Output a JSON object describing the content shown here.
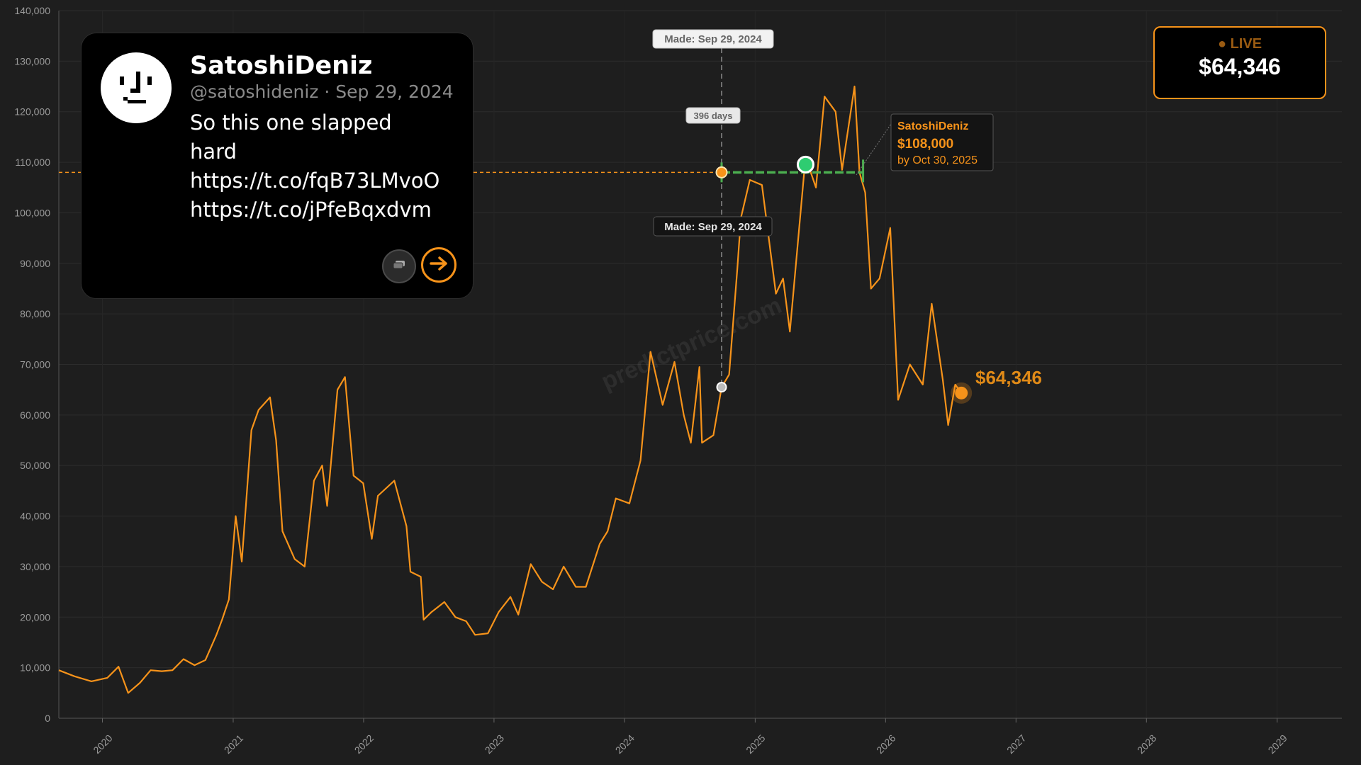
{
  "live": {
    "label": "● LIVE",
    "price": "$64,346"
  },
  "tweet": {
    "name": "SatoshiDeniz",
    "meta": "@satoshideniz · Sep 29, 2024",
    "text_lines": [
      "So this one slapped",
      "hard",
      "https://t.co/fqB73LMvoO",
      "https://t.co/jPfeBqxdvm"
    ]
  },
  "annotations": {
    "made_top": "Made: Sep 29, 2024",
    "made_mid": "Made: Sep 29, 2024",
    "days": "396 days",
    "pred_name": "SatoshiDeniz",
    "pred_price": "$108,000",
    "pred_by": "by Oct 30, 2025",
    "current_price": "$64,346",
    "watermark": "predictprice.com"
  },
  "colors": {
    "price_line": "#f7931a",
    "target_line": "#4caf50",
    "hit_marker": "#2ecc71",
    "background": "#1e1e1e"
  },
  "chart_data": {
    "type": "line",
    "title": "",
    "xlabel": "",
    "ylabel": "",
    "ylim": [
      0,
      140000
    ],
    "xlim": [
      "2019-09-01",
      "2029-07-01"
    ],
    "y_ticks": [
      "0",
      "10,000",
      "20,000",
      "30,000",
      "40,000",
      "50,000",
      "60,000",
      "70,000",
      "80,000",
      "90,000",
      "100,000",
      "110,000",
      "120,000",
      "130,000",
      "140,000"
    ],
    "x_ticks": [
      "2020",
      "2021",
      "2022",
      "2023",
      "2024",
      "2025",
      "2026",
      "2027",
      "2028",
      "2029"
    ],
    "grid": true,
    "series": [
      {
        "x": [
          "2019-09-01",
          "2019-10-15",
          "2019-12-01",
          "2020-01-15",
          "2020-02-15",
          "2020-03-13",
          "2020-04-15",
          "2020-05-15",
          "2020-06-15",
          "2020-07-15",
          "2020-08-15",
          "2020-09-15",
          "2020-10-15",
          "2020-11-15",
          "2020-12-01",
          "2020-12-20",
          "2021-01-08",
          "2021-01-25",
          "2021-02-21",
          "2021-03-13",
          "2021-04-14",
          "2021-05-01",
          "2021-05-19",
          "2021-06-22",
          "2021-07-20",
          "2021-08-15",
          "2021-09-07",
          "2021-09-21",
          "2021-10-20",
          "2021-11-10",
          "2021-12-04",
          "2021-12-31",
          "2022-01-24",
          "2022-02-10",
          "2022-03-28",
          "2022-05-01",
          "2022-05-12",
          "2022-06-10",
          "2022-06-18",
          "2022-07-10",
          "2022-08-15",
          "2022-09-15",
          "2022-10-15",
          "2022-11-09",
          "2022-12-15",
          "2023-01-14",
          "2023-02-16",
          "2023-03-10",
          "2023-04-14",
          "2023-05-15",
          "2023-06-15",
          "2023-07-15",
          "2023-08-18",
          "2023-09-15",
          "2023-10-24",
          "2023-11-15",
          "2023-12-08",
          "2024-01-15",
          "2024-02-15",
          "2024-03-14",
          "2024-04-17",
          "2024-05-20",
          "2024-06-15",
          "2024-07-05",
          "2024-07-29",
          "2024-08-05",
          "2024-09-06",
          "2024-09-29",
          "2024-10-20",
          "2024-11-12",
          "2024-11-22",
          "2024-12-17",
          "2025-01-20",
          "2025-02-28",
          "2025-03-20",
          "2025-04-08",
          "2025-05-22",
          "2025-06-20",
          "2025-07-14",
          "2025-08-14",
          "2025-09-01",
          "2025-10-06",
          "2025-10-20",
          "2025-11-05",
          "2025-11-21",
          "2025-12-15",
          "2026-01-14",
          "2026-02-05",
          "2026-03-10",
          "2026-04-15",
          "2026-05-10",
          "2026-06-10",
          "2026-06-25",
          "2026-07-15",
          "2026-08-01"
        ],
        "y": [
          9500,
          8300,
          7300,
          8000,
          10200,
          5000,
          7000,
          9500,
          9300,
          9500,
          11700,
          10500,
          11500,
          16500,
          19500,
          23500,
          40000,
          31000,
          57000,
          61000,
          63500,
          55000,
          37000,
          31500,
          30000,
          47000,
          50000,
          42000,
          65000,
          67500,
          48000,
          46500,
          35500,
          44000,
          47000,
          38000,
          29000,
          28000,
          19500,
          21000,
          23000,
          20000,
          19200,
          16500,
          16800,
          21000,
          24000,
          20500,
          30500,
          27000,
          25500,
          30000,
          26000,
          26000,
          34500,
          37000,
          43500,
          42500,
          51000,
          72500,
          62000,
          70500,
          60000,
          54500,
          69500,
          54500,
          56000,
          65500,
          68000,
          89000,
          99000,
          106500,
          105500,
          84000,
          87000,
          76500,
          111000,
          105000,
          123000,
          120000,
          108500,
          125000,
          108000,
          104000,
          85000,
          87000,
          97000,
          63000,
          70000,
          66000,
          82000,
          67000,
          58000,
          66000,
          64346
        ]
      }
    ],
    "prediction": {
      "made": "2024-09-29",
      "target": 108000,
      "deadline": "2025-10-30",
      "days": 396,
      "hit_date": "2025-05-22",
      "price_at_made": 65500
    },
    "current": {
      "date": "2026-08-01",
      "value": 64346
    }
  }
}
